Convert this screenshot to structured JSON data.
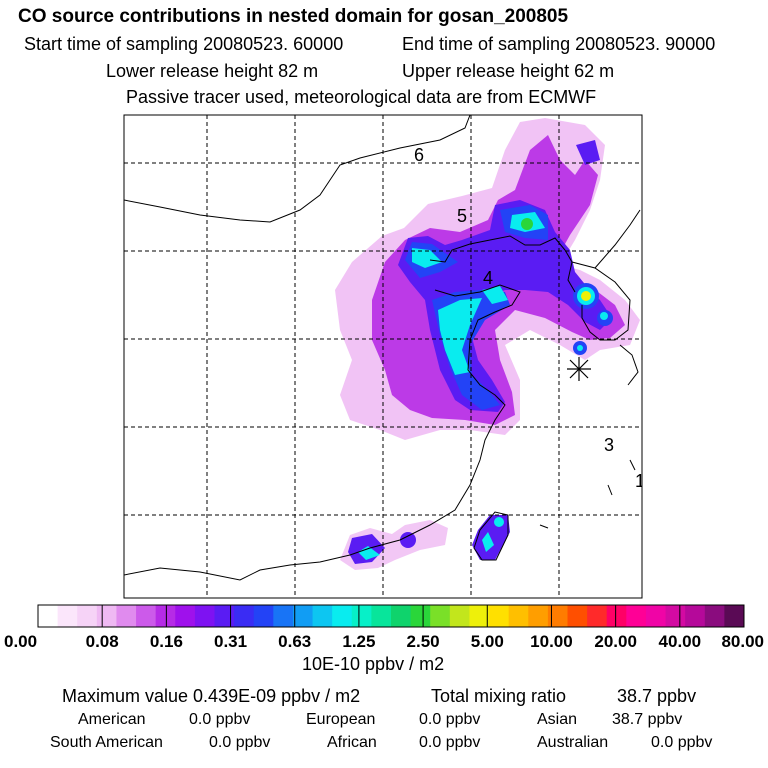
{
  "header": {
    "title": "CO  source contributions in nested domain for gosan_200805",
    "start_time": "Start time of sampling 20080523. 60000",
    "end_time": "End time of sampling 20080523. 90000",
    "lower_release": "Lower release height   82 m",
    "upper_release": "Upper release height   62 m",
    "note": "Passive tracer used, meteorological data are from ECMWF"
  },
  "map": {
    "grid_labels": [
      "6",
      "5",
      "4",
      "3",
      "1"
    ]
  },
  "chart_data": {
    "type": "heatmap",
    "title": "CO  source contributions in nested domain for gosan_200805",
    "colorbar": {
      "tick_labels": [
        "0.00",
        "0.08",
        "0.16",
        "0.31",
        "0.63",
        "1.25",
        "2.50",
        "5.00",
        "10.00",
        "20.00",
        "40.00",
        "80.00"
      ],
      "unit": "10E-10 ppbv / m2",
      "colors": [
        "#ffffff",
        "#fbe6fb",
        "#f6d3f7",
        "#efb9f3",
        "#e08bee",
        "#cc5aea",
        "#b62be6",
        "#9f11ec",
        "#7e12f2",
        "#5a1cf3",
        "#3a2cf4",
        "#2343f6",
        "#1874f6",
        "#119df4",
        "#0dc6f1",
        "#09ecef",
        "#07f0c8",
        "#08e59b",
        "#0fd36c",
        "#2ad63a",
        "#7ae028",
        "#c2e61c",
        "#eef00a",
        "#ffe000",
        "#ffbf00",
        "#ff9e00",
        "#ff7c00",
        "#ff4f00",
        "#ff2a2a",
        "#ff0066",
        "#ff0096",
        "#f004a6",
        "#d30aa2",
        "#b5099a",
        "#8a0c7e",
        "#5a0a55"
      ]
    },
    "stats": {
      "max_label": "Maximum value  0.439E-09 ppbv / m2",
      "total_label": "Total mixing ratio",
      "total_value": "38.7 ppbv",
      "american_label": "American",
      "american_value": "0.0 ppbv",
      "european_label": "European",
      "european_value": "0.0 ppbv",
      "asian_label": "Asian",
      "asian_value": "38.7 ppbv",
      "south_american_label": "South American",
      "south_american_value": "0.0 ppbv",
      "african_label": "African",
      "african_value": "0.0 ppbv",
      "australian_label": "Australian",
      "australian_value": "0.0 ppbv"
    },
    "receptor_marker": "gosan"
  },
  "colors": {
    "pale": "#efb9f3",
    "magenta": "#b62be6",
    "violet": "#7e12f2",
    "blue": "#2343f6",
    "cyan": "#09ecef",
    "green": "#2ad63a",
    "yellow": "#eef00a"
  }
}
